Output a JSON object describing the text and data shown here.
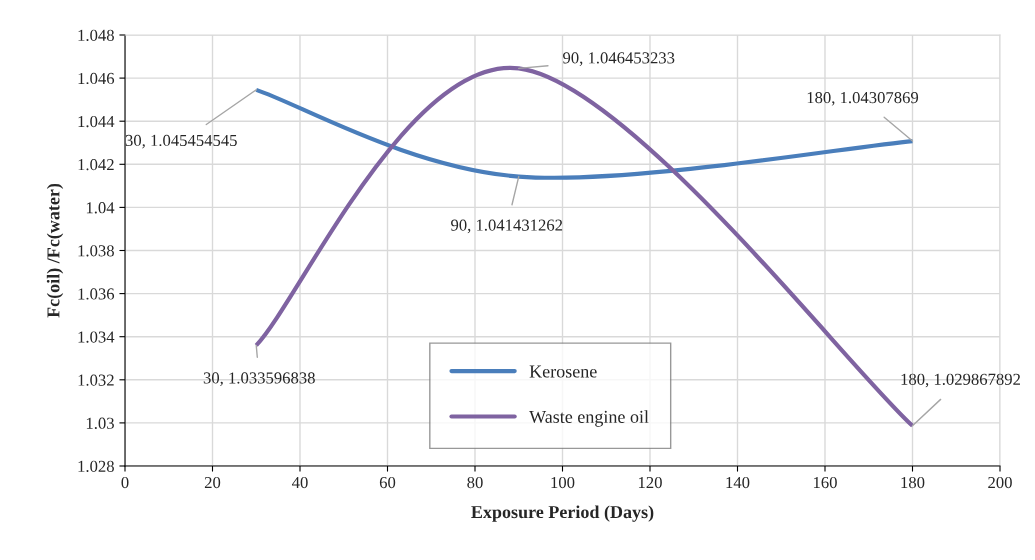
{
  "chart_data": {
    "type": "line",
    "xlabel": "Exposure Period (Days)",
    "ylabel": "Fc(oil) /Fc(water)",
    "x": [
      30,
      90,
      180
    ],
    "series": [
      {
        "name": "Kerosene",
        "color": "#4a7ebb",
        "values": [
          1.045454545,
          1.041431262,
          1.04307869
        ]
      },
      {
        "name": "Waste engine oil",
        "color": "#7f63a1",
        "values": [
          1.033596838,
          1.046453233,
          1.029867892
        ]
      }
    ],
    "annotations": [
      {
        "text": "30, 1.045454545",
        "x": 30,
        "y": 1.045454545
      },
      {
        "text": "90, 1.041431262",
        "x": 90,
        "y": 1.041431262
      },
      {
        "text": "180, 1.04307869",
        "x": 180,
        "y": 1.04307869
      },
      {
        "text": "30, 1.033596838",
        "x": 30,
        "y": 1.033596838
      },
      {
        "text": "90, 1.046453233",
        "x": 90,
        "y": 1.046453233
      },
      {
        "text": "180, 1.029867892",
        "x": 180,
        "y": 1.029867892
      }
    ],
    "xlim": [
      0,
      200
    ],
    "xticks": [
      0,
      20,
      40,
      60,
      80,
      100,
      120,
      140,
      160,
      180,
      200
    ],
    "ylim": [
      1.028,
      1.048
    ],
    "yticks": [
      1.028,
      1.03,
      1.032,
      1.034,
      1.036,
      1.038,
      1.04,
      1.042,
      1.044,
      1.046,
      1.048
    ],
    "grid": true,
    "legend": "bottom",
    "marker": "none",
    "line_style": "solid"
  }
}
